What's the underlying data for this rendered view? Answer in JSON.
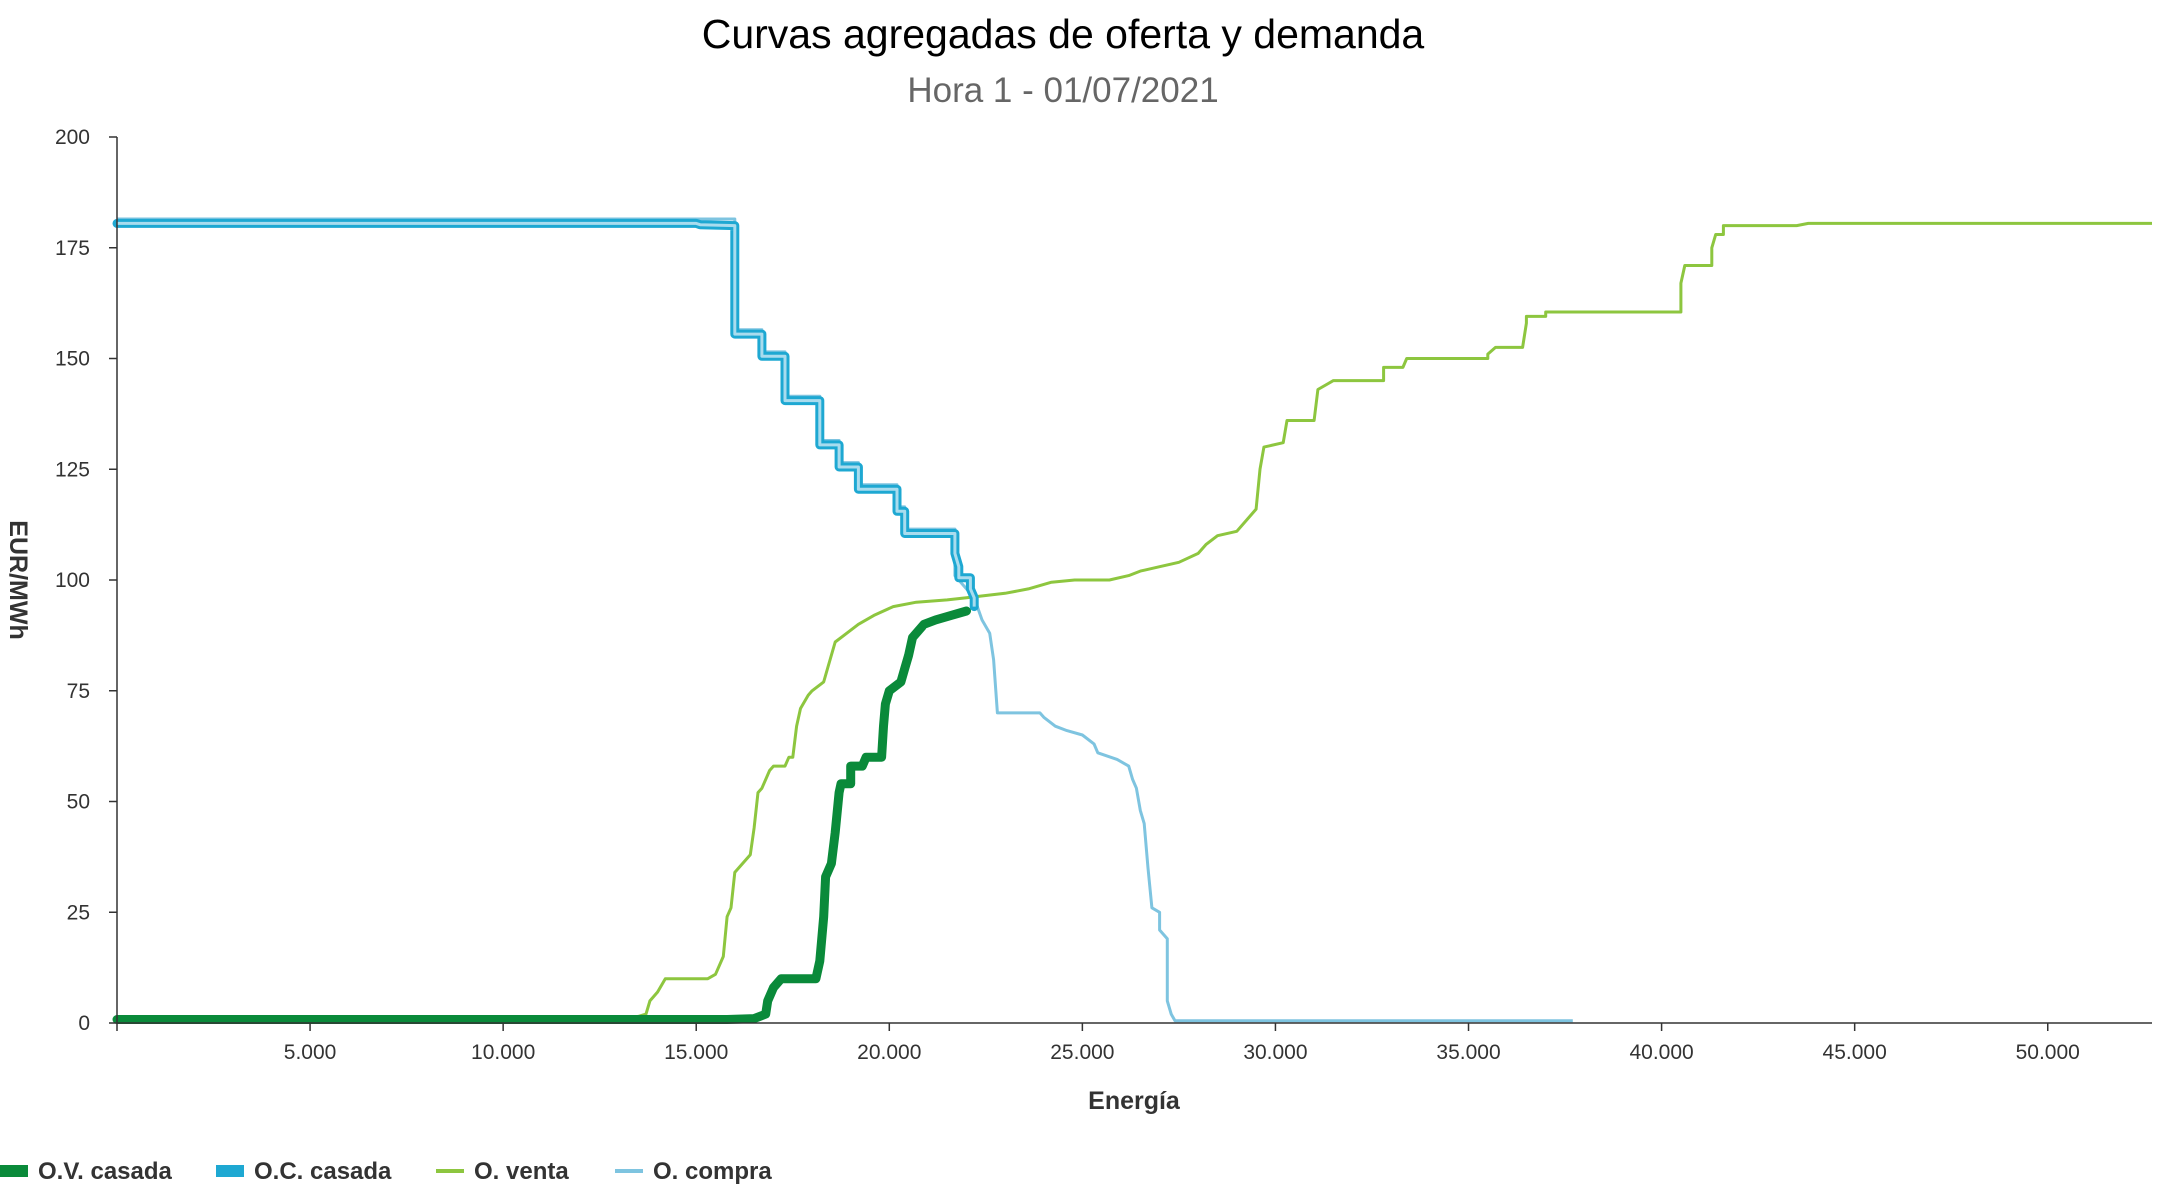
{
  "chart_data": {
    "type": "line",
    "title": "Curvas agregadas de oferta y demanda",
    "subtitle": "Hora 1 - 01/07/2021",
    "xlabel": "Energía",
    "ylabel": "EUR/MWh",
    "xlim": [
      0,
      52700
    ],
    "ylim": [
      0,
      200
    ],
    "x_ticks": [
      5000,
      10000,
      15000,
      20000,
      25000,
      30000,
      35000,
      40000,
      45000,
      50000
    ],
    "x_tick_labels": [
      "5.000",
      "10.000",
      "15.000",
      "20.000",
      "25.000",
      "30.000",
      "35.000",
      "40.000",
      "45.000",
      "50.000"
    ],
    "y_ticks": [
      0,
      25,
      50,
      75,
      100,
      125,
      150,
      175,
      200
    ],
    "y_tick_labels": [
      "0",
      "25",
      "50",
      "75",
      "100",
      "125",
      "150",
      "175",
      "200"
    ],
    "grid": false,
    "legend_position": "bottom-left",
    "series": [
      {
        "name": "O.V. casada",
        "color": "#0a8a3a",
        "style": "thick",
        "points": [
          [
            0,
            0.8
          ],
          [
            15800,
            0.8
          ],
          [
            16500,
            1
          ],
          [
            16800,
            2
          ],
          [
            16850,
            5
          ],
          [
            17000,
            8
          ],
          [
            17200,
            10
          ],
          [
            18100,
            10
          ],
          [
            18200,
            14
          ],
          [
            18300,
            24
          ],
          [
            18350,
            33
          ],
          [
            18500,
            36
          ],
          [
            18600,
            43
          ],
          [
            18700,
            52
          ],
          [
            18750,
            54
          ],
          [
            19000,
            54
          ],
          [
            19000,
            58
          ],
          [
            19300,
            58
          ],
          [
            19400,
            60
          ],
          [
            19800,
            60
          ],
          [
            19850,
            67
          ],
          [
            19900,
            72
          ],
          [
            20000,
            75
          ],
          [
            20300,
            77
          ],
          [
            20400,
            80
          ],
          [
            20500,
            83
          ],
          [
            20600,
            87
          ],
          [
            20700,
            88
          ],
          [
            20900,
            90
          ],
          [
            21200,
            91
          ],
          [
            21600,
            92
          ],
          [
            22000,
            93
          ]
        ]
      },
      {
        "name": "O.C. casada",
        "color": "#1ea8d2",
        "style": "thick",
        "points": [
          [
            0,
            180.5
          ],
          [
            15000,
            180.5
          ],
          [
            15100,
            180.2
          ],
          [
            16000,
            180
          ],
          [
            16000,
            155.5
          ],
          [
            16700,
            155.5
          ],
          [
            16700,
            150.5
          ],
          [
            17300,
            150.5
          ],
          [
            17300,
            140.5
          ],
          [
            18200,
            140.5
          ],
          [
            18200,
            130.5
          ],
          [
            18700,
            130.5
          ],
          [
            18700,
            125.5
          ],
          [
            19200,
            125.5
          ],
          [
            19200,
            120.5
          ],
          [
            20200,
            120.5
          ],
          [
            20200,
            115.5
          ],
          [
            20400,
            115.5
          ],
          [
            20400,
            110.5
          ],
          [
            21700,
            110.5
          ],
          [
            21700,
            106
          ],
          [
            21800,
            103
          ],
          [
            21800,
            100.5
          ],
          [
            22100,
            100.5
          ],
          [
            22100,
            98
          ],
          [
            22200,
            96
          ],
          [
            22200,
            94
          ]
        ]
      },
      {
        "name": "O. venta",
        "color": "#8dc63f",
        "style": "thin",
        "points": [
          [
            0,
            1
          ],
          [
            13000,
            1
          ],
          [
            13500,
            1.5
          ],
          [
            13700,
            2
          ],
          [
            13800,
            5
          ],
          [
            14000,
            7
          ],
          [
            14200,
            10
          ],
          [
            15300,
            10
          ],
          [
            15500,
            11
          ],
          [
            15700,
            15
          ],
          [
            15800,
            24
          ],
          [
            15900,
            26
          ],
          [
            16000,
            34
          ],
          [
            16200,
            36
          ],
          [
            16400,
            38
          ],
          [
            16500,
            44
          ],
          [
            16600,
            52
          ],
          [
            16700,
            53
          ],
          [
            16900,
            57
          ],
          [
            17000,
            58
          ],
          [
            17300,
            58
          ],
          [
            17400,
            60
          ],
          [
            17500,
            60
          ],
          [
            17600,
            67
          ],
          [
            17700,
            71
          ],
          [
            17900,
            74
          ],
          [
            18000,
            75
          ],
          [
            18300,
            77
          ],
          [
            18400,
            80
          ],
          [
            18600,
            86
          ],
          [
            18900,
            88
          ],
          [
            19200,
            90
          ],
          [
            19600,
            92
          ],
          [
            20100,
            94
          ],
          [
            20700,
            95
          ],
          [
            21500,
            95.5
          ],
          [
            22000,
            96
          ],
          [
            22500,
            96.5
          ],
          [
            23000,
            97
          ],
          [
            23600,
            98
          ],
          [
            24200,
            99.5
          ],
          [
            24800,
            100
          ],
          [
            25700,
            100
          ],
          [
            26200,
            101
          ],
          [
            26500,
            102
          ],
          [
            27000,
            103
          ],
          [
            27500,
            104
          ],
          [
            28000,
            106
          ],
          [
            28200,
            108
          ],
          [
            28500,
            110
          ],
          [
            29000,
            111
          ],
          [
            29300,
            114
          ],
          [
            29500,
            116
          ],
          [
            29600,
            125
          ],
          [
            29700,
            130
          ],
          [
            30200,
            131
          ],
          [
            30300,
            136
          ],
          [
            31000,
            136
          ],
          [
            31100,
            143
          ],
          [
            31500,
            145
          ],
          [
            32800,
            145
          ],
          [
            32800,
            148
          ],
          [
            33300,
            148
          ],
          [
            33400,
            150
          ],
          [
            35500,
            150
          ],
          [
            35500,
            151
          ],
          [
            35700,
            152.5
          ],
          [
            36400,
            152.5
          ],
          [
            36500,
            158
          ],
          [
            36500,
            159.5
          ],
          [
            37000,
            159.5
          ],
          [
            37000,
            160.5
          ],
          [
            40500,
            160.5
          ],
          [
            40500,
            167
          ],
          [
            40600,
            171
          ],
          [
            41300,
            171
          ],
          [
            41300,
            175
          ],
          [
            41400,
            178
          ],
          [
            41600,
            178
          ],
          [
            41600,
            180
          ],
          [
            43500,
            180
          ],
          [
            43800,
            180.5
          ],
          [
            52700,
            180.5
          ]
        ]
      },
      {
        "name": "O. compra",
        "color": "#7ec4e0",
        "style": "thin",
        "points": [
          [
            0,
            181.5
          ],
          [
            16000,
            181.5
          ],
          [
            16000,
            156.5
          ],
          [
            16700,
            156.5
          ],
          [
            16700,
            151.5
          ],
          [
            17300,
            151.5
          ],
          [
            17300,
            141.5
          ],
          [
            18200,
            141.5
          ],
          [
            18200,
            131.5
          ],
          [
            18700,
            131.5
          ],
          [
            18700,
            126.5
          ],
          [
            19200,
            126.5
          ],
          [
            19200,
            121.5
          ],
          [
            20200,
            121.5
          ],
          [
            20200,
            116.5
          ],
          [
            20400,
            116.5
          ],
          [
            20400,
            111.5
          ],
          [
            21700,
            111.5
          ],
          [
            21700,
            101
          ],
          [
            22200,
            96
          ],
          [
            22400,
            91
          ],
          [
            22600,
            88
          ],
          [
            22700,
            82
          ],
          [
            22800,
            70
          ],
          [
            23900,
            70
          ],
          [
            24000,
            69
          ],
          [
            24300,
            67
          ],
          [
            24600,
            66
          ],
          [
            25000,
            65
          ],
          [
            25300,
            63
          ],
          [
            25400,
            61
          ],
          [
            25900,
            59.5
          ],
          [
            26200,
            58
          ],
          [
            26300,
            55
          ],
          [
            26400,
            53
          ],
          [
            26500,
            48
          ],
          [
            26600,
            45
          ],
          [
            26700,
            35
          ],
          [
            26800,
            26
          ],
          [
            27000,
            25
          ],
          [
            27000,
            21
          ],
          [
            27200,
            19
          ],
          [
            27200,
            5
          ],
          [
            27300,
            2
          ],
          [
            27400,
            0.5
          ],
          [
            37700,
            0.5
          ]
        ]
      }
    ]
  }
}
